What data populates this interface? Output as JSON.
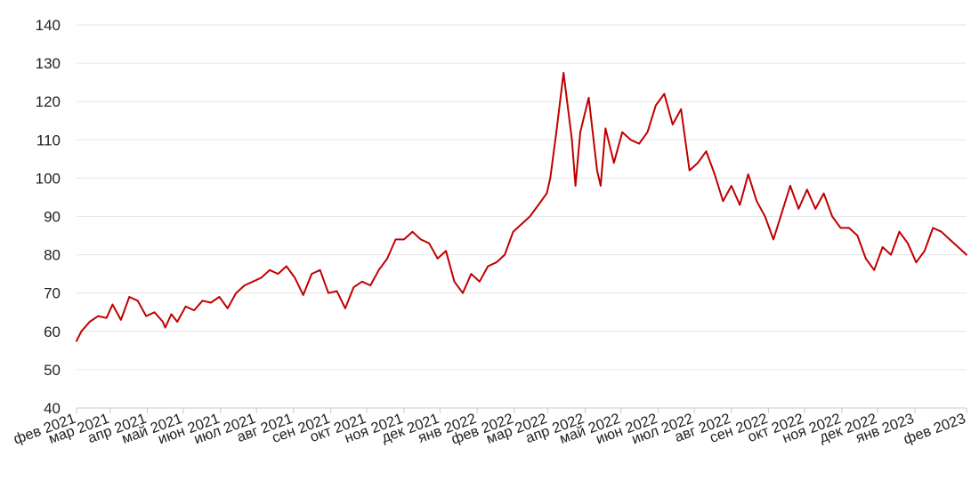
{
  "chart_data": {
    "type": "line",
    "title": "",
    "xlabel": "",
    "ylabel": "",
    "ylim": [
      40,
      140
    ],
    "yticks": [
      "40",
      "50",
      "60",
      "70",
      "80",
      "90",
      "100",
      "110",
      "120",
      "130",
      "140"
    ],
    "xlim": [
      "2021-02-01",
      "2023-02-13"
    ],
    "xtick_labels": [
      "фев 2021",
      "мар 2021",
      "апр 2021",
      "май 2021",
      "июн 2021",
      "июл 2021",
      "авг 2021",
      "сен 2021",
      "окт 2021",
      "ноя 2021",
      "дек 2021",
      "янв 2022",
      "фев 2022",
      "мар 2022",
      "апр 2022",
      "май 2022",
      "июн 2022",
      "июл 2022",
      "авг 2022",
      "сен 2022",
      "окт 2022",
      "ноя 2022",
      "дек 2022",
      "янв 2023",
      "фев 2023"
    ],
    "grid": true,
    "legend": "none",
    "line_color": "#c00000",
    "series": [
      {
        "x": [
          "2021-02-01",
          "2021-02-05",
          "2021-02-12",
          "2021-02-19",
          "2021-02-26",
          "2021-03-03",
          "2021-03-10",
          "2021-03-17",
          "2021-03-24",
          "2021-03-31",
          "2021-04-07",
          "2021-04-14",
          "2021-04-16",
          "2021-04-21",
          "2021-04-26",
          "2021-05-03",
          "2021-05-10",
          "2021-05-17",
          "2021-05-24",
          "2021-05-31",
          "2021-06-07",
          "2021-06-14",
          "2021-06-21",
          "2021-06-28",
          "2021-07-05",
          "2021-07-12",
          "2021-07-19",
          "2021-07-26",
          "2021-08-02",
          "2021-08-09",
          "2021-08-16",
          "2021-08-23",
          "2021-08-30",
          "2021-09-06",
          "2021-09-13",
          "2021-09-20",
          "2021-09-27",
          "2021-10-04",
          "2021-10-11",
          "2021-10-18",
          "2021-10-25",
          "2021-11-01",
          "2021-11-08",
          "2021-11-15",
          "2021-11-22",
          "2021-11-29",
          "2021-12-06",
          "2021-12-13",
          "2021-12-20",
          "2021-12-27",
          "2022-01-03",
          "2022-01-10",
          "2022-01-17",
          "2022-01-24",
          "2022-01-31",
          "2022-02-07",
          "2022-02-14",
          "2022-02-21",
          "2022-02-28",
          "2022-03-03",
          "2022-03-08",
          "2022-03-14",
          "2022-03-21",
          "2022-03-24",
          "2022-03-28",
          "2022-04-04",
          "2022-04-11",
          "2022-04-14",
          "2022-04-18",
          "2022-04-25",
          "2022-05-02",
          "2022-05-09",
          "2022-05-16",
          "2022-05-23",
          "2022-05-30",
          "2022-06-06",
          "2022-06-13",
          "2022-06-20",
          "2022-06-27",
          "2022-07-04",
          "2022-07-11",
          "2022-07-18",
          "2022-07-25",
          "2022-08-01",
          "2022-08-08",
          "2022-08-15",
          "2022-08-22",
          "2022-08-29",
          "2022-09-05",
          "2022-09-12",
          "2022-09-19",
          "2022-09-26",
          "2022-10-03",
          "2022-10-10",
          "2022-10-17",
          "2022-10-24",
          "2022-10-31",
          "2022-11-07",
          "2022-11-14",
          "2022-11-21",
          "2022-11-28",
          "2022-12-05",
          "2022-12-12",
          "2022-12-19",
          "2022-12-26",
          "2023-01-02",
          "2023-01-09",
          "2023-01-16",
          "2023-01-23",
          "2023-01-30",
          "2023-02-06",
          "2023-02-13"
        ],
        "y": [
          57.5,
          60,
          62.5,
          64,
          63.5,
          67,
          63,
          69,
          68,
          64,
          65,
          62.5,
          61,
          64.5,
          62.5,
          66.5,
          65.5,
          68,
          67.5,
          69,
          66,
          70,
          72,
          73,
          74,
          76,
          75,
          77,
          74,
          69.5,
          75,
          76,
          70,
          70.5,
          66,
          71.5,
          73,
          72,
          76,
          79,
          84,
          84,
          86,
          84,
          83,
          79,
          81,
          73,
          70,
          75,
          73,
          77,
          78,
          80,
          86,
          88,
          90,
          93,
          96,
          100,
          112,
          127.5,
          110,
          98,
          112,
          121,
          102,
          98,
          113,
          104,
          112,
          110,
          109,
          112,
          119,
          122,
          114,
          118,
          102,
          104,
          107,
          101,
          94,
          98,
          93,
          101,
          94,
          90,
          84,
          91,
          98,
          92,
          97,
          92,
          96,
          90,
          87,
          87,
          85,
          79,
          76,
          82,
          80,
          86,
          83,
          78,
          81,
          87,
          86,
          84,
          82,
          80
        ]
      }
    ]
  }
}
